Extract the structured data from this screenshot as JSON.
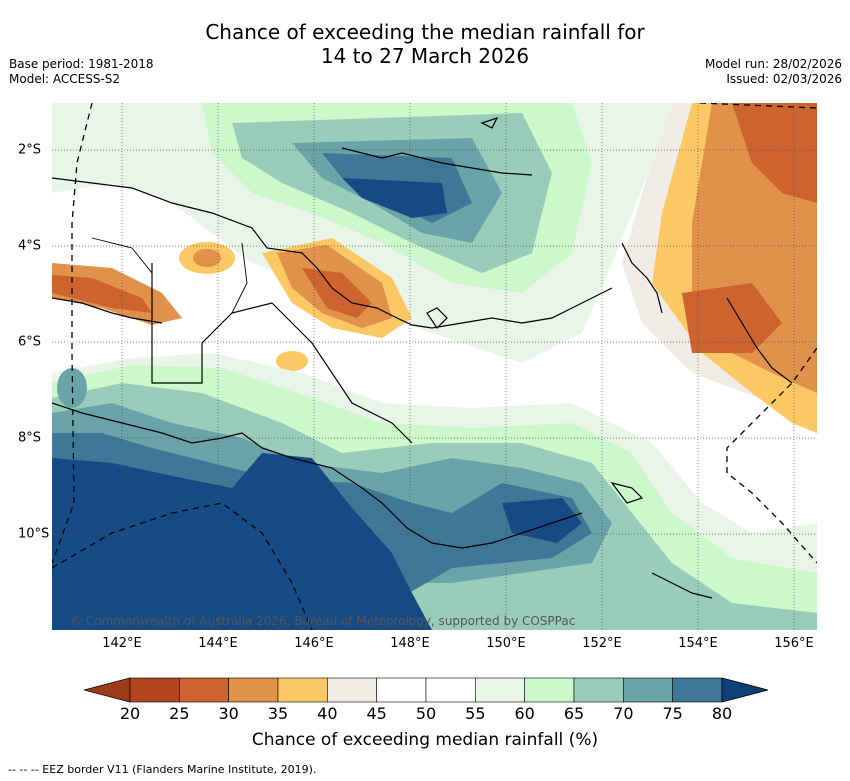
{
  "title": {
    "line1": "Chance of exceeding the median rainfall for",
    "line2": "14 to 27 March 2026"
  },
  "meta_left": {
    "base_period": "Base period: 1981-2018",
    "model": "Model: ACCESS-S2"
  },
  "meta_right": {
    "model_run": "Model run: 28/02/2026",
    "issued": "Issued: 02/03/2026"
  },
  "map": {
    "lon_ticks": [
      "142°E",
      "144°E",
      "146°E",
      "148°E",
      "150°E",
      "152°E",
      "154°E",
      "156°E"
    ],
    "lat_ticks": [
      "2°S",
      "4°S",
      "6°S",
      "8°S",
      "10°S"
    ],
    "copyright": "© Commonwealth of Australia 2026, Bureau of Meteorology, supported by COSPPac"
  },
  "colorbar": {
    "labels": [
      "20",
      "25",
      "30",
      "35",
      "40",
      "45",
      "50",
      "55",
      "60",
      "65",
      "70",
      "75",
      "80"
    ],
    "colors": [
      "#b0451f",
      "#cd632e",
      "#e0914a",
      "#fcc866",
      "#f0ece6",
      "#ffffff",
      "#ffffff",
      "#e8f5e8",
      "#ccf8cc",
      "#9acdb9",
      "#6aa4a9",
      "#3f7796",
      "#154a84"
    ],
    "under_color": "#a03b1a",
    "over_color": "#0f3f78",
    "title": "Chance of exceeding median rainfall (%)"
  },
  "footnote": "--  --  -- EEZ border V11 (Flanders Marine Institute, 2019)."
}
